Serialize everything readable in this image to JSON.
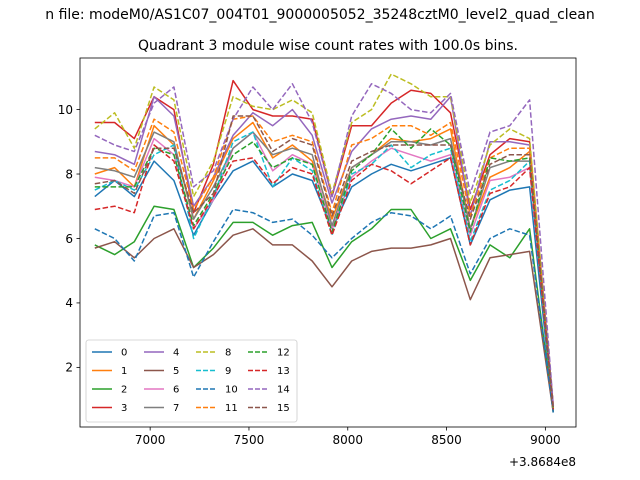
{
  "suptitle": "n file: modeM0/AS1C07_004T01_9000005052_35248cztM0_level2_quad_clean",
  "chart_data": {
    "type": "line",
    "title": "Quadrant 3 module wise count rates with 100.0s bins.",
    "xlabel": "",
    "ylabel": "",
    "offset_label": "+3.8684e8",
    "xlim": [
      6645,
      9155
    ],
    "ylim": [
      0.15,
      11.6
    ],
    "xticks": [
      7000,
      7500,
      8000,
      8500,
      9000
    ],
    "yticks": [
      2,
      4,
      6,
      8,
      10
    ],
    "x": [
      6720,
      6820,
      6920,
      7020,
      7120,
      7220,
      7320,
      7420,
      7520,
      7620,
      7720,
      7820,
      7920,
      8020,
      8120,
      8220,
      8320,
      8420,
      8520,
      8620,
      8720,
      8820,
      8920,
      9040
    ],
    "legend": {
      "position": "lower left",
      "columns": 4
    },
    "series": [
      {
        "name": "0",
        "color": "#1f77b4",
        "dash": "solid",
        "values": [
          7.3,
          7.8,
          7.3,
          8.4,
          7.8,
          6.1,
          7.2,
          8.1,
          8.4,
          7.6,
          8.0,
          7.8,
          6.3,
          7.6,
          8.0,
          8.3,
          8.1,
          8.3,
          8.5,
          5.8,
          7.2,
          7.5,
          7.6,
          0.6
        ]
      },
      {
        "name": "1",
        "color": "#ff7f0e",
        "dash": "solid",
        "values": [
          8.0,
          8.2,
          7.6,
          9.5,
          8.9,
          6.6,
          7.8,
          9.1,
          9.6,
          8.5,
          8.9,
          8.4,
          6.6,
          8.2,
          8.6,
          9.1,
          9.0,
          9.1,
          9.4,
          6.3,
          7.9,
          8.2,
          8.7,
          0.7
        ]
      },
      {
        "name": "2",
        "color": "#2ca02c",
        "dash": "solid",
        "values": [
          5.8,
          5.5,
          5.9,
          7.0,
          6.9,
          5.1,
          5.7,
          6.5,
          6.5,
          6.1,
          6.4,
          6.5,
          5.1,
          5.9,
          6.3,
          6.9,
          6.9,
          6.0,
          6.3,
          4.7,
          5.8,
          5.4,
          6.3,
          0.6
        ]
      },
      {
        "name": "3",
        "color": "#d62728",
        "dash": "solid",
        "values": [
          9.6,
          9.6,
          9.1,
          10.4,
          10.0,
          6.8,
          8.3,
          10.9,
          10.0,
          9.8,
          9.8,
          9.7,
          7.3,
          9.5,
          9.5,
          10.2,
          10.6,
          10.5,
          9.9,
          6.9,
          8.6,
          9.1,
          9.0,
          0.8
        ]
      },
      {
        "name": "4",
        "color": "#9467bd",
        "dash": "solid",
        "values": [
          8.7,
          8.6,
          8.3,
          10.4,
          9.8,
          7.0,
          7.9,
          9.2,
          9.9,
          9.5,
          10.0,
          9.2,
          7.1,
          8.7,
          9.4,
          9.7,
          9.8,
          9.7,
          10.4,
          6.7,
          9.0,
          9.0,
          8.9,
          0.8
        ]
      },
      {
        "name": "5",
        "color": "#8c564b",
        "dash": "solid",
        "values": [
          5.7,
          5.9,
          5.4,
          6.0,
          6.3,
          5.1,
          5.5,
          6.1,
          6.3,
          5.8,
          5.8,
          5.3,
          4.5,
          5.3,
          5.6,
          5.7,
          5.7,
          5.8,
          6.0,
          4.1,
          5.4,
          5.5,
          5.6,
          0.6
        ]
      },
      {
        "name": "6",
        "color": "#e377c2",
        "dash": "solid",
        "values": [
          7.9,
          7.8,
          7.6,
          9.1,
          8.6,
          6.3,
          7.2,
          8.8,
          9.3,
          8.1,
          8.6,
          8.3,
          6.3,
          7.9,
          8.4,
          8.8,
          8.6,
          8.4,
          8.6,
          6.1,
          7.8,
          7.9,
          8.2,
          0.7
        ]
      },
      {
        "name": "7",
        "color": "#7f7f7f",
        "dash": "solid",
        "values": [
          8.2,
          8.1,
          7.9,
          9.3,
          9.0,
          6.6,
          7.6,
          8.8,
          9.3,
          8.6,
          8.8,
          8.6,
          6.4,
          8.2,
          8.6,
          9.0,
          9.0,
          8.9,
          9.1,
          6.3,
          8.2,
          8.4,
          8.4,
          0.7
        ]
      },
      {
        "name": "8",
        "color": "#bcbd22",
        "dash": "dashed",
        "values": [
          9.4,
          9.9,
          8.8,
          10.7,
          10.3,
          7.3,
          8.4,
          10.4,
          10.1,
          10.0,
          10.3,
          9.9,
          7.4,
          9.6,
          10.0,
          11.1,
          10.8,
          10.4,
          10.4,
          7.1,
          8.9,
          9.4,
          9.1,
          0.8
        ]
      },
      {
        "name": "9",
        "color": "#17becf",
        "dash": "dashed",
        "values": [
          7.5,
          7.8,
          7.5,
          8.6,
          8.9,
          6.0,
          7.3,
          9.0,
          9.3,
          7.6,
          8.5,
          8.1,
          6.1,
          8.0,
          8.3,
          8.9,
          8.2,
          8.6,
          8.8,
          5.9,
          7.5,
          7.8,
          8.4,
          0.7
        ]
      },
      {
        "name": "10",
        "color": "#1f77b4",
        "dash": "dashed",
        "values": [
          6.3,
          6.0,
          5.3,
          6.7,
          6.8,
          4.8,
          5.9,
          6.9,
          6.8,
          6.5,
          6.6,
          6.1,
          5.4,
          6.0,
          6.5,
          6.8,
          6.7,
          6.3,
          6.7,
          4.9,
          6.0,
          6.3,
          6.1,
          0.6
        ]
      },
      {
        "name": "11",
        "color": "#ff7f0e",
        "dash": "dashed",
        "values": [
          8.5,
          8.5,
          8.1,
          9.7,
          9.3,
          6.9,
          7.9,
          9.7,
          9.8,
          9.0,
          9.2,
          9.0,
          6.8,
          8.9,
          9.1,
          9.5,
          9.5,
          9.2,
          9.6,
          6.7,
          8.5,
          8.8,
          8.8,
          0.7
        ]
      },
      {
        "name": "12",
        "color": "#2ca02c",
        "dash": "dashed",
        "values": [
          7.6,
          7.6,
          7.6,
          8.8,
          8.6,
          6.4,
          7.4,
          8.6,
          9.0,
          8.2,
          8.5,
          8.3,
          6.2,
          8.1,
          8.6,
          9.4,
          8.8,
          9.4,
          8.9,
          6.2,
          8.5,
          8.4,
          8.5,
          0.7
        ]
      },
      {
        "name": "13",
        "color": "#d62728",
        "dash": "dashed",
        "values": [
          6.9,
          7.0,
          6.8,
          8.9,
          8.4,
          6.3,
          7.3,
          8.4,
          8.5,
          7.7,
          8.2,
          8.0,
          6.1,
          7.8,
          8.3,
          8.1,
          7.7,
          8.1,
          8.5,
          5.8,
          7.4,
          7.6,
          8.2,
          0.7
        ]
      },
      {
        "name": "14",
        "color": "#9467bd",
        "dash": "dashed",
        "values": [
          9.2,
          8.9,
          8.7,
          10.2,
          10.7,
          7.6,
          8.1,
          9.7,
          10.7,
          10.0,
          10.8,
          9.6,
          7.3,
          9.8,
          10.8,
          10.5,
          10.0,
          9.9,
          10.5,
          7.4,
          9.3,
          9.5,
          10.3,
          0.8
        ]
      },
      {
        "name": "15",
        "color": "#8c564b",
        "dash": "dashed",
        "values": [
          7.7,
          7.8,
          7.4,
          8.8,
          8.8,
          6.8,
          7.4,
          9.8,
          9.8,
          8.7,
          9.1,
          8.9,
          6.7,
          8.4,
          8.7,
          8.9,
          8.9,
          8.9,
          8.9,
          6.6,
          8.3,
          8.6,
          8.6,
          0.7
        ]
      }
    ]
  }
}
